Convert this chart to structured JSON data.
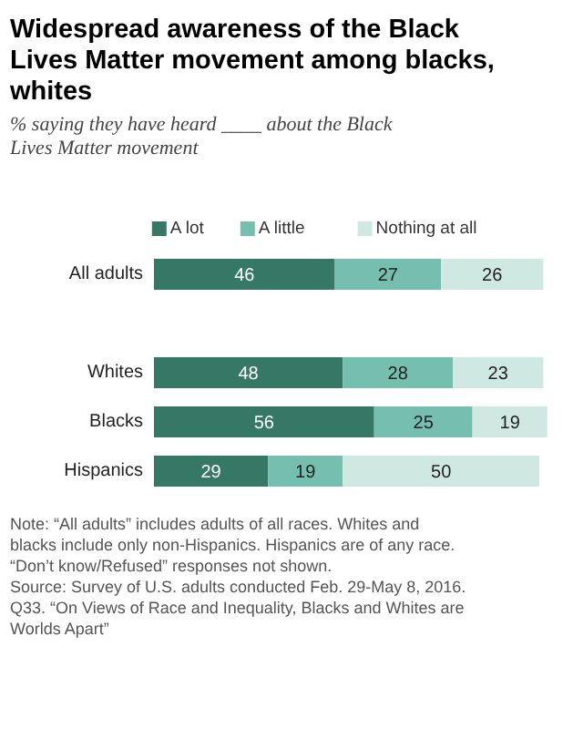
{
  "chart_data": {
    "type": "bar",
    "orientation": "horizontal",
    "stacked": true,
    "data_labels": true,
    "legend": "top",
    "title": "Widespread awareness of the Black Lives Matter movement among blacks, whites",
    "subtitle": "% saying they have heard ____ about the Black Lives Matter movement",
    "categories": [
      "All adults",
      null,
      "Whites",
      "Blacks",
      "Hispanics"
    ],
    "series": [
      {
        "name": "A lot",
        "color": "#367866",
        "values": [
          46,
          null,
          48,
          56,
          29
        ]
      },
      {
        "name": "A little",
        "color": "#76bfae",
        "values": [
          27,
          null,
          28,
          25,
          19
        ]
      },
      {
        "name": "Nothing at all",
        "color": "#d0e8e2",
        "values": [
          26,
          null,
          23,
          19,
          50
        ]
      }
    ],
    "annotations": [
      "Note: “All adults” includes adults of all races. Whites and blacks include only non-Hispanics. Hispanics are of any race. “Don’t know/Refused” responses not shown.",
      "Source: Survey of U.S. adults conducted Feb. 29-May 8, 2016. Q33. “On Views of Race and Inequality, Blacks and Whites are Worlds Apart”"
    ]
  }
}
